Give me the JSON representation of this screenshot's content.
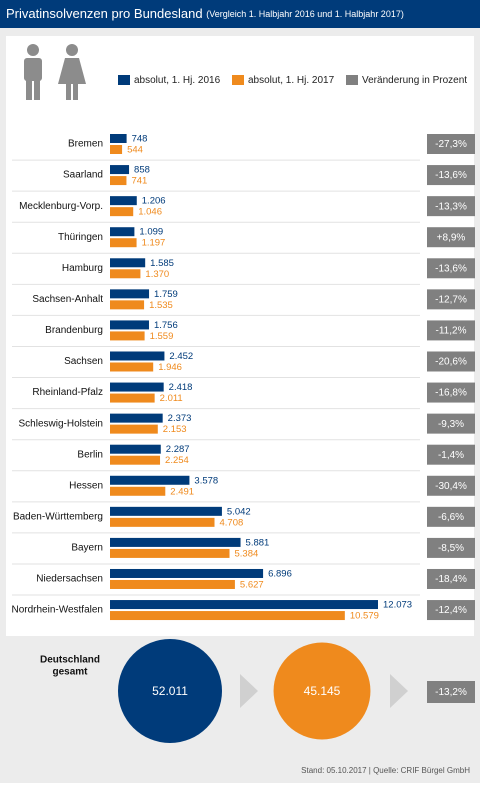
{
  "chart_data": {
    "type": "bar",
    "orientation": "horizontal",
    "title": "Privatinsolvenzen pro Bundesland",
    "subtitle": "(Vergleich 1. Halbjahr 2016 und 1. Halbjahr 2017)",
    "categories": [
      "Bremen",
      "Saarland",
      "Mecklenburg-Vorp.",
      "Thüringen",
      "Hamburg",
      "Sachsen-Anhalt",
      "Brandenburg",
      "Sachsen",
      "Rheinland-Pfalz",
      "Schleswig-Holstein",
      "Berlin",
      "Hessen",
      "Baden-Württemberg",
      "Bayern",
      "Niedersachsen",
      "Nordrhein-Westfalen"
    ],
    "series": [
      {
        "name": "absolut, 1. Hj. 2016",
        "color": "#003b7a",
        "values": [
          748,
          858,
          1206,
          1099,
          1585,
          1759,
          1756,
          2452,
          2418,
          2373,
          2287,
          3578,
          5042,
          5881,
          6896,
          12073
        ],
        "value_labels": [
          "748",
          "858",
          "1.206",
          "1.099",
          "1.585",
          "1.759",
          "1.756",
          "2.452",
          "2.418",
          "2.373",
          "2.287",
          "3.578",
          "5.042",
          "5.881",
          "6.896",
          "12.073"
        ]
      },
      {
        "name": "absolut, 1. Hj. 2017",
        "color": "#ef8a1d",
        "values": [
          544,
          741,
          1046,
          1197,
          1370,
          1535,
          1559,
          1946,
          2011,
          2153,
          2254,
          2491,
          4708,
          5384,
          5627,
          10579
        ],
        "value_labels": [
          "544",
          "741",
          "1.046",
          "1.197",
          "1.370",
          "1.535",
          "1.559",
          "1.946",
          "2.011",
          "2.153",
          "2.254",
          "2.491",
          "4.708",
          "5.384",
          "5.627",
          "10.579"
        ]
      }
    ],
    "change": {
      "name": "Veränderung in Prozent",
      "color": "#808080",
      "values": [
        -27.3,
        -13.6,
        -13.3,
        8.9,
        -13.6,
        -12.7,
        -11.2,
        -20.6,
        -16.8,
        -9.3,
        -1.4,
        -30.4,
        -6.6,
        -8.5,
        -18.4,
        -12.4
      ],
      "value_labels": [
        "-27,3%",
        "-13,6%",
        "-13,3%",
        "+8,9%",
        "-13,6%",
        "-12,7%",
        "-11,2%",
        "-20,6%",
        "-16,8%",
        "-9,3%",
        "-1,4%",
        "-30,4%",
        "-6,6%",
        "-8,5%",
        "-18,4%",
        "-12,4%"
      ]
    },
    "total": {
      "label": [
        "Deutschland",
        "gesamt"
      ],
      "values": [
        52011,
        45145
      ],
      "value_labels": [
        "52.011",
        "45.145"
      ],
      "change": -13.2,
      "change_label": "-13,2%"
    },
    "footer": "Stand: 05.10.2017 | Quelle: CRIF Bürgel GmbH"
  }
}
